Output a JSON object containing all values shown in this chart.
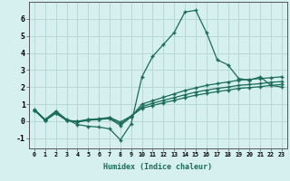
{
  "title": "",
  "xlabel": "Humidex (Indice chaleur)",
  "bg_color": "#d6f0ef",
  "grid_color": "#b8d8d4",
  "line_color": "#1a6b5a",
  "xlim": [
    -0.5,
    23.5
  ],
  "ylim": [
    -1.6,
    7.0
  ],
  "xticks": [
    0,
    1,
    2,
    3,
    4,
    5,
    6,
    7,
    8,
    9,
    10,
    11,
    12,
    13,
    14,
    15,
    16,
    17,
    18,
    19,
    20,
    21,
    22,
    23
  ],
  "yticks": [
    -1,
    0,
    1,
    2,
    3,
    4,
    5,
    6
  ],
  "series": [
    [
      0.7,
      0.1,
      0.6,
      0.1,
      -0.2,
      -0.3,
      -0.35,
      -0.45,
      -1.1,
      -0.15,
      2.6,
      3.8,
      4.5,
      5.2,
      6.4,
      6.5,
      5.2,
      3.6,
      3.3,
      2.5,
      2.4,
      2.6,
      2.1,
      2.0
    ],
    [
      0.65,
      0.05,
      0.5,
      0.05,
      -0.05,
      0.05,
      0.1,
      0.15,
      -0.25,
      0.25,
      1.0,
      1.2,
      1.4,
      1.6,
      1.8,
      1.95,
      2.1,
      2.2,
      2.3,
      2.4,
      2.45,
      2.5,
      2.55,
      2.6
    ],
    [
      0.65,
      0.05,
      0.48,
      0.05,
      -0.03,
      0.08,
      0.12,
      0.18,
      -0.15,
      0.28,
      0.85,
      1.05,
      1.22,
      1.38,
      1.55,
      1.7,
      1.82,
      1.92,
      2.0,
      2.1,
      2.15,
      2.2,
      2.28,
      2.32
    ],
    [
      0.65,
      0.05,
      0.46,
      0.05,
      -0.01,
      0.1,
      0.14,
      0.22,
      -0.05,
      0.3,
      0.75,
      0.92,
      1.08,
      1.22,
      1.38,
      1.52,
      1.63,
      1.73,
      1.82,
      1.92,
      1.97,
      2.02,
      2.1,
      2.15
    ]
  ]
}
